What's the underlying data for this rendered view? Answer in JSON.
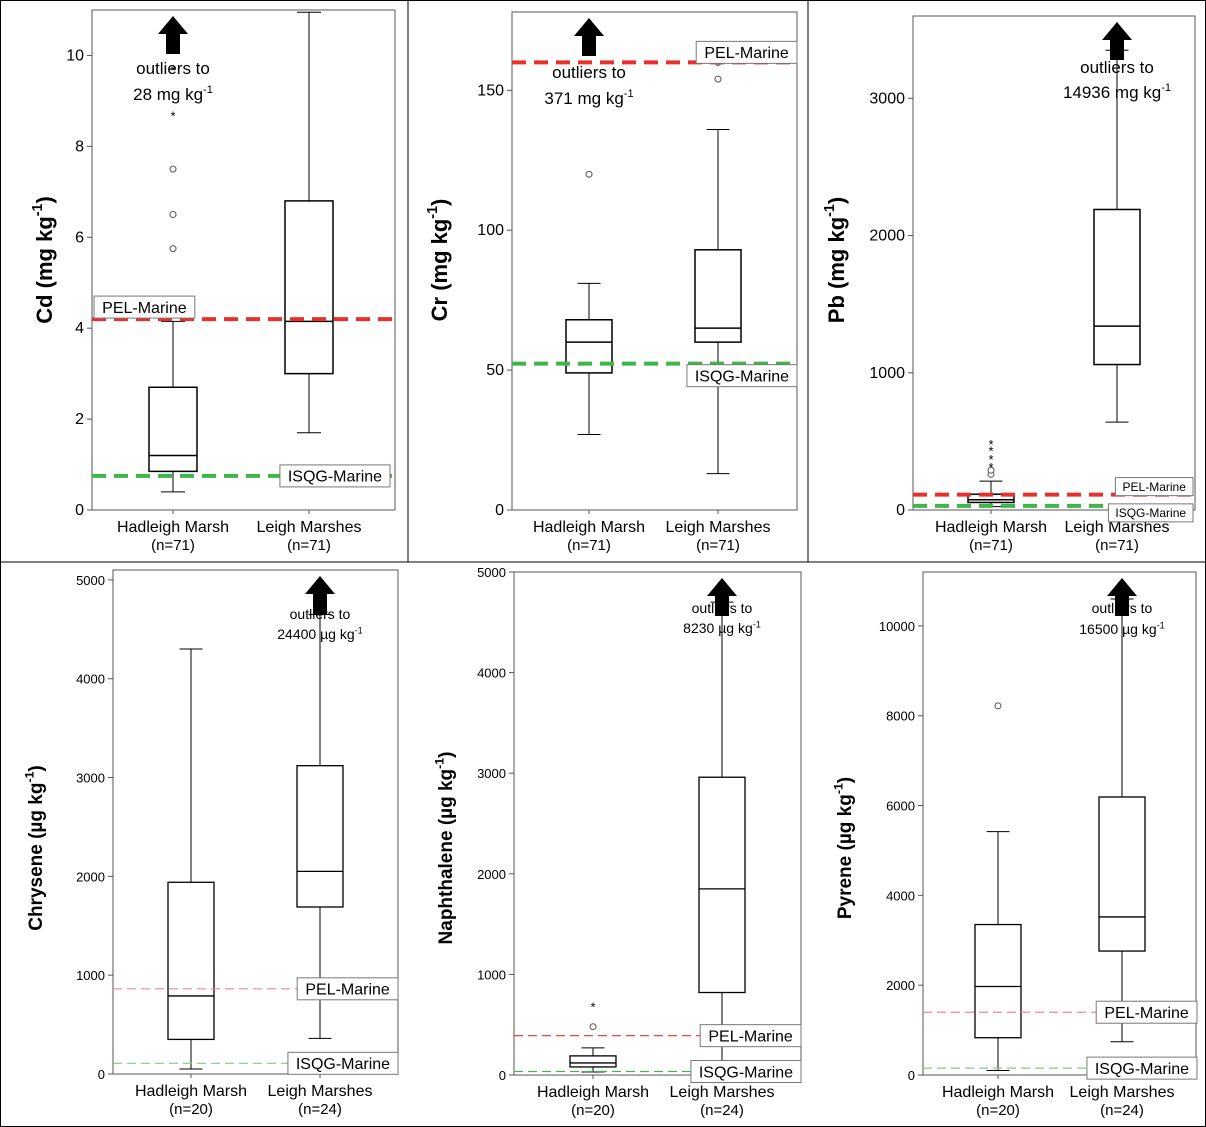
{
  "chart_data": [
    {
      "type": "box",
      "ylabel": "Cd (mg kg",
      "ylabel_sup": "-1",
      "ylabel_tail": ")",
      "categories": [
        "Hadleigh Marsh",
        "Leigh Marshes"
      ],
      "counts": [
        "(n=71)",
        "(n=71)"
      ],
      "ylim": [
        0,
        11
      ],
      "yticks": [
        0,
        2,
        4,
        6,
        8,
        10
      ],
      "boxes": [
        {
          "min": 0.4,
          "q1": 0.85,
          "median": 1.2,
          "q3": 2.7,
          "max": 4.15,
          "outliers": [
            {
              "v": 5.75,
              "s": "o"
            },
            {
              "v": 6.5,
              "s": "o"
            },
            {
              "v": 7.5,
              "s": "o"
            },
            {
              "v": 8.7,
              "s": "*"
            },
            {
              "v": 9.7,
              "s": "*"
            }
          ]
        },
        {
          "min": 1.7,
          "q1": 3.0,
          "median": 4.15,
          "q3": 6.8,
          "max": 10.95,
          "outliers": []
        }
      ],
      "guidelines": [
        {
          "name": "PEL-Marine",
          "value": 4.2,
          "color": "#e8302d"
        },
        {
          "name": "ISQG-Marine",
          "value": 0.75,
          "color": "#3fb54a"
        }
      ],
      "note": {
        "line1": "outliers to",
        "line2": "28 mg kg",
        "sup": "-1"
      }
    },
    {
      "type": "box",
      "ylabel": "Cr (mg kg",
      "ylabel_sup": "-1",
      "ylabel_tail": ")",
      "categories": [
        "Hadleigh Marsh",
        "Leigh Marshes"
      ],
      "counts": [
        "(n=71)",
        "(n=71)"
      ],
      "ylim": [
        0,
        178
      ],
      "yticks": [
        0,
        50,
        100,
        150
      ],
      "boxes": [
        {
          "min": 27,
          "q1": 49,
          "median": 60,
          "q3": 68,
          "max": 81,
          "outliers": [
            {
              "v": 120,
              "s": "o"
            }
          ]
        },
        {
          "min": 13,
          "q1": 60,
          "median": 65,
          "q3": 93,
          "max": 136,
          "outliers": [
            {
              "v": 154,
              "s": "o"
            },
            {
              "v": 160,
              "s": "o"
            }
          ]
        }
      ],
      "guidelines": [
        {
          "name": "PEL-Marine",
          "value": 160,
          "color": "#e8302d"
        },
        {
          "name": "ISQG-Marine",
          "value": 52.3,
          "color": "#3fb54a"
        }
      ],
      "note": {
        "line1": "outliers to",
        "line2": "371 mg kg",
        "sup": "-1"
      }
    },
    {
      "type": "box",
      "ylabel": "Pb (mg kg",
      "ylabel_sup": "-1",
      "ylabel_tail": ")",
      "categories": [
        "Hadleigh Marsh",
        "Leigh Marshes"
      ],
      "counts": [
        "(n=71)",
        "(n=71)"
      ],
      "ylim": [
        0,
        3600
      ],
      "yticks": [
        0,
        1000,
        2000,
        3000
      ],
      "boxes": [
        {
          "min": 25,
          "q1": 55,
          "median": 75,
          "q3": 115,
          "max": 210,
          "outliers": [
            {
              "v": 260,
              "s": "o"
            },
            {
              "v": 290,
              "s": "o"
            },
            {
              "v": 320,
              "s": "*"
            },
            {
              "v": 380,
              "s": "*"
            },
            {
              "v": 440,
              "s": "*"
            },
            {
              "v": 490,
              "s": "*"
            }
          ]
        },
        {
          "min": 640,
          "q1": 1060,
          "median": 1340,
          "q3": 2190,
          "max": 3350,
          "outliers": []
        }
      ],
      "guidelines": [
        {
          "name": "PEL-Marine",
          "value": 112,
          "color": "#e8302d"
        },
        {
          "name": "ISQG-Marine",
          "value": 30.2,
          "color": "#3fb54a"
        }
      ],
      "note": {
        "line1": "outliers to",
        "line2": "14936 mg kg",
        "sup": "-1"
      }
    },
    {
      "type": "box",
      "ylabel": "Chrysene (µg kg",
      "ylabel_sup": "-1",
      "ylabel_tail": ")",
      "categories": [
        "Hadleigh Marsh",
        "Leigh Marshes"
      ],
      "counts": [
        "(n=20)",
        "(n=24)"
      ],
      "ylim": [
        0,
        5100
      ],
      "yticks": [
        0,
        1000,
        2000,
        3000,
        4000,
        5000
      ],
      "boxes": [
        {
          "min": 50,
          "q1": 350,
          "median": 790,
          "q3": 1940,
          "max": 4300,
          "outliers": []
        },
        {
          "min": 360,
          "q1": 1690,
          "median": 2050,
          "q3": 3120,
          "max": 4650,
          "outliers": []
        }
      ],
      "guidelines": [
        {
          "name": "PEL-Marine",
          "value": 862,
          "color": "#f08a8a"
        },
        {
          "name": "ISQG-Marine",
          "value": 108,
          "color": "#7ccf7c"
        }
      ],
      "note": {
        "line1": "outliers to",
        "line2": "24400 µg kg",
        "sup": "-1"
      }
    },
    {
      "type": "box",
      "ylabel": "Naphthalene (µg kg",
      "ylabel_sup": "-1",
      "ylabel_tail": ")",
      "categories": [
        "Hadleigh Marsh",
        "Leigh Marshes"
      ],
      "counts": [
        "(n=20)",
        "(n=24)"
      ],
      "ylim": [
        0,
        5000
      ],
      "yticks": [
        0,
        1000,
        2000,
        3000,
        4000,
        5000
      ],
      "boxes": [
        {
          "min": 30,
          "q1": 80,
          "median": 120,
          "q3": 190,
          "max": 270,
          "outliers": [
            {
              "v": 480,
              "s": "o"
            },
            {
              "v": 690,
              "s": "*"
            }
          ]
        },
        {
          "min": 60,
          "q1": 820,
          "median": 1850,
          "q3": 2960,
          "max": 4700,
          "outliers": []
        }
      ],
      "guidelines": [
        {
          "name": "PEL-Marine",
          "value": 391,
          "color": "#e8302d"
        },
        {
          "name": "ISQG-Marine",
          "value": 34.6,
          "color": "#3fb54a"
        }
      ],
      "note": {
        "line1": "outliers to",
        "line2": "8230 µg kg",
        "sup": "-1"
      }
    },
    {
      "type": "box",
      "ylabel": "Pyrene (µg kg",
      "ylabel_sup": "-1",
      "ylabel_tail": ")",
      "categories": [
        "Hadleigh Marsh",
        "Leigh Marshes"
      ],
      "counts": [
        "(n=20)",
        "(n=24)"
      ],
      "ylim": [
        0,
        11200
      ],
      "yticks": [
        0,
        2000,
        4000,
        6000,
        8000,
        10000
      ],
      "boxes": [
        {
          "min": 100,
          "q1": 830,
          "median": 1970,
          "q3": 3350,
          "max": 5420,
          "outliers": [
            {
              "v": 8220,
              "s": "o"
            }
          ]
        },
        {
          "min": 740,
          "q1": 2760,
          "median": 3520,
          "q3": 6190,
          "max": 10600,
          "outliers": []
        }
      ],
      "guidelines": [
        {
          "name": "PEL-Marine",
          "value": 1398,
          "color": "#f08a8a"
        },
        {
          "name": "ISQG-Marine",
          "value": 153,
          "color": "#7ccf7c"
        }
      ],
      "note": {
        "line1": "outliers to",
        "line2": "16500 µg kg",
        "sup": "-1"
      }
    }
  ]
}
